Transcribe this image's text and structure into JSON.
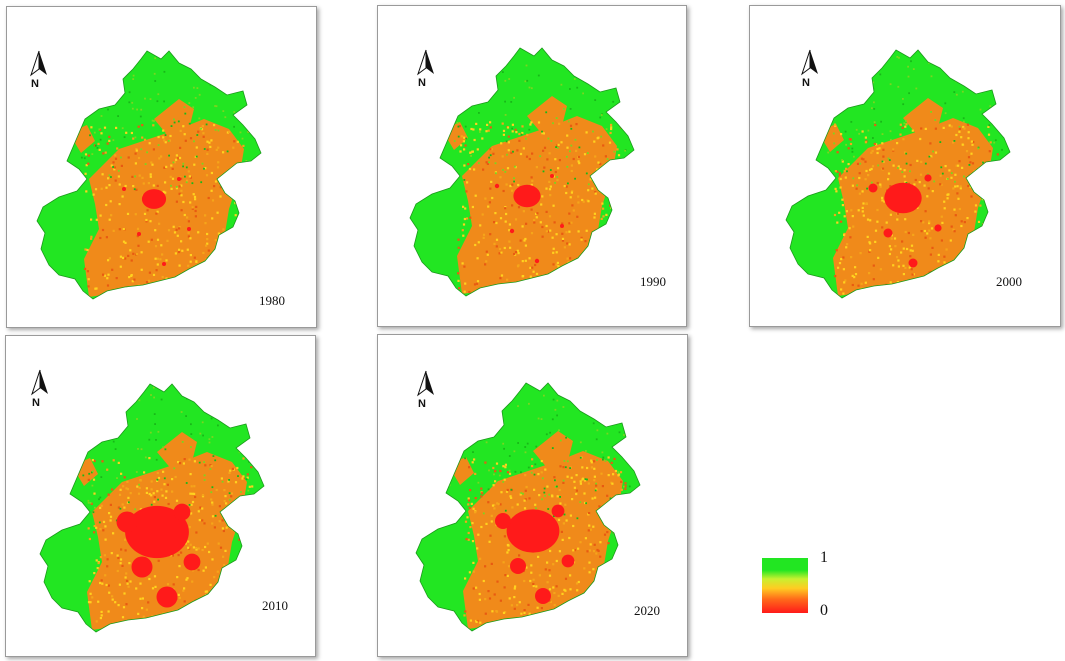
{
  "panels": [
    {
      "year": "1980",
      "urban": 0.55
    },
    {
      "year": "1990",
      "urban": 0.62
    },
    {
      "year": "2000",
      "urban": 0.85
    },
    {
      "year": "2010",
      "urban": 1.45
    },
    {
      "year": "2020",
      "urban": 1.2
    }
  ],
  "north_label": "N",
  "legend": {
    "high": "1",
    "low": "0"
  },
  "colors": {
    "high": "#22e622",
    "low": "#ff1a1a",
    "mid": "#f08a1a"
  }
}
